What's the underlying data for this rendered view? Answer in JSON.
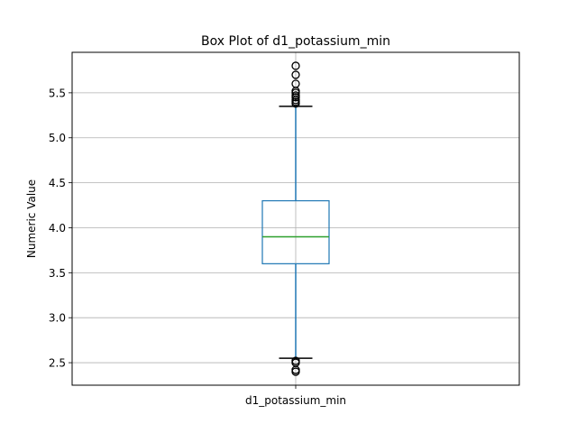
{
  "chart_data": {
    "type": "box",
    "title": "Box Plot of d1_potassium_min",
    "xlabel": "",
    "ylabel": "Numeric Value",
    "categories": [
      "d1_potassium_min"
    ],
    "ylim": [
      2.25,
      5.95
    ],
    "yticks": [
      2.5,
      3.0,
      3.5,
      4.0,
      4.5,
      5.0,
      5.5
    ],
    "ytick_labels": [
      "2.5",
      "3.0",
      "3.5",
      "4.0",
      "4.5",
      "5.0",
      "5.5"
    ],
    "grid": true,
    "series": [
      {
        "whisker_low": 2.55,
        "q1": 3.6,
        "median": 3.9,
        "q3": 4.3,
        "whisker_high": 5.35,
        "outliers_high": [
          5.38,
          5.4,
          5.42,
          5.45,
          5.47,
          5.5,
          5.52,
          5.6,
          5.7,
          5.8
        ],
        "outliers_low": [
          2.4,
          2.42,
          2.5,
          2.52
        ]
      }
    ],
    "colors": {
      "box": "#1f77b4",
      "median": "#2ca02c",
      "whisker": "#1f77b4",
      "cap": "#000000",
      "grid": "#b0b0b0"
    }
  }
}
